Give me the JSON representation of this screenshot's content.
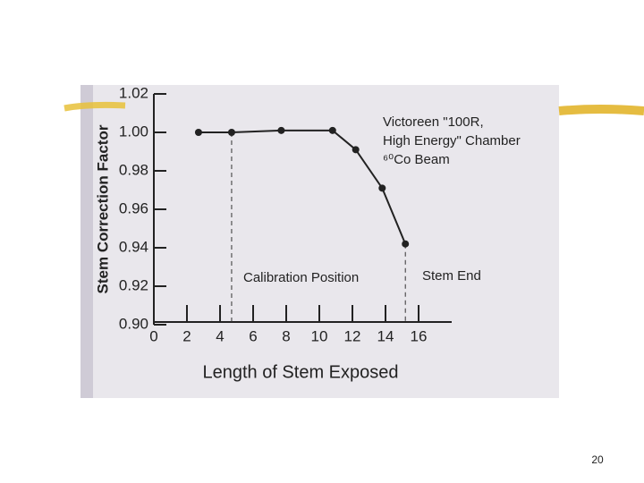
{
  "chart_data": {
    "type": "line",
    "x_label": "Length of Stem Exposed",
    "y_label": "Stem Correction Factor",
    "xlim": [
      0,
      18
    ],
    "ylim": [
      0.9,
      1.02
    ],
    "xticks": [
      0,
      2,
      4,
      6,
      8,
      10,
      12,
      14,
      16
    ],
    "yticks": [
      {
        "value": 0.9,
        "label": "0.90"
      },
      0.92,
      0.94,
      0.96,
      0.98,
      {
        "value": 1,
        "label": "1.00"
      },
      1.02
    ],
    "series": [
      {
        "color": "#222222",
        "x": [
          2.7,
          4.7,
          7.7,
          10.8,
          12.2,
          13.8,
          15.2
        ],
        "values": [
          1.0,
          1.0,
          1.001,
          1.001,
          0.991,
          0.971,
          0.942
        ]
      }
    ],
    "annotations": [
      "Victoreen \"100R,",
      "High Energy\" Chamber",
      "⁶⁰Co Beam",
      "Calibration Position",
      "Stem End"
    ]
  },
  "slide": {
    "page_number": "20"
  }
}
